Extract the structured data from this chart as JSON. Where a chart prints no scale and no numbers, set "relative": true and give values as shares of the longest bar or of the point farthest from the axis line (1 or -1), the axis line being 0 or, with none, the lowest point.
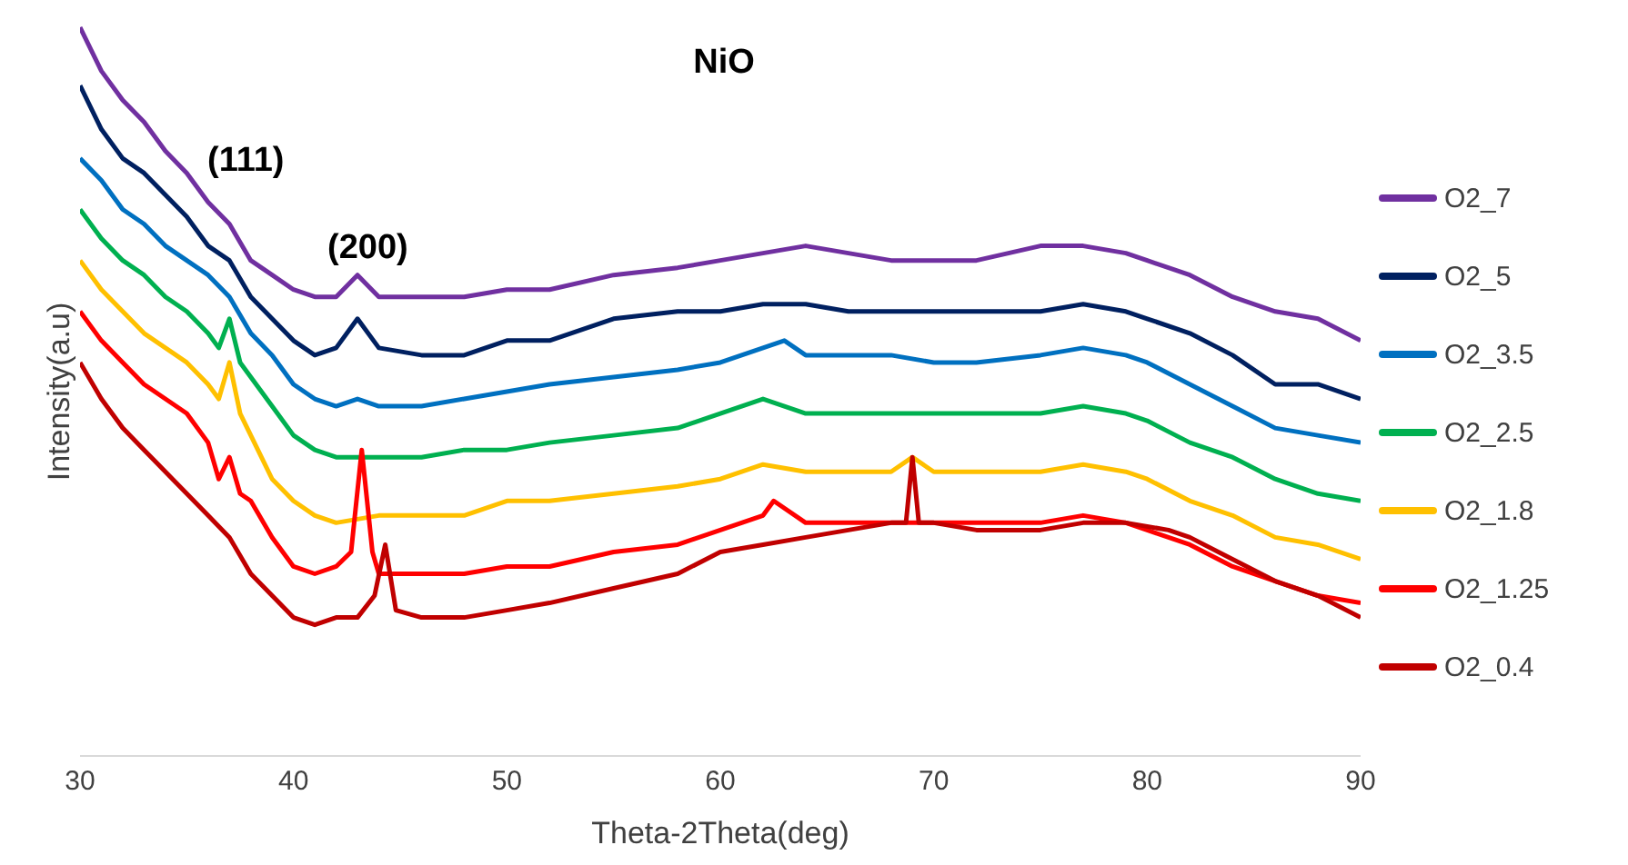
{
  "chart_data": {
    "type": "line",
    "title": "NiO",
    "xlabel": "Theta-2Theta(deg)",
    "ylabel": "Intensity(a.u)",
    "relative": true,
    "xlim": [
      30,
      90
    ],
    "xticks": [
      30,
      40,
      50,
      60,
      70,
      80,
      90
    ],
    "grid": false,
    "legend": "right",
    "marker": "none",
    "line_style": "solid",
    "annotations": [
      "(111)",
      "(200)"
    ],
    "series": [
      {
        "name": "O2_7",
        "color": "#7030a0",
        "x": [
          30,
          31,
          32,
          33,
          34,
          35,
          36,
          37,
          38,
          39,
          40,
          41,
          42,
          43,
          44,
          46,
          48,
          50,
          52,
          55,
          58,
          60,
          62,
          64,
          66,
          68,
          70,
          72,
          75,
          77,
          79,
          80,
          82,
          84,
          86,
          88,
          90
        ],
        "values": [
          1.0,
          0.94,
          0.9,
          0.87,
          0.83,
          0.8,
          0.76,
          0.73,
          0.68,
          0.66,
          0.64,
          0.63,
          0.63,
          0.66,
          0.63,
          0.63,
          0.63,
          0.64,
          0.64,
          0.66,
          0.67,
          0.68,
          0.69,
          0.7,
          0.69,
          0.68,
          0.68,
          0.68,
          0.7,
          0.7,
          0.69,
          0.68,
          0.66,
          0.63,
          0.61,
          0.6,
          0.57
        ]
      },
      {
        "name": "O2_5",
        "color": "#002060",
        "x": [
          30,
          31,
          32,
          33,
          34,
          35,
          36,
          37,
          38,
          39,
          40,
          41,
          42,
          43,
          44,
          46,
          48,
          50,
          52,
          55,
          58,
          60,
          62,
          64,
          66,
          68,
          70,
          72,
          75,
          77,
          79,
          80,
          82,
          84,
          86,
          88,
          90
        ],
        "values": [
          0.92,
          0.86,
          0.82,
          0.8,
          0.77,
          0.74,
          0.7,
          0.68,
          0.63,
          0.6,
          0.57,
          0.55,
          0.56,
          0.6,
          0.56,
          0.55,
          0.55,
          0.57,
          0.57,
          0.6,
          0.61,
          0.61,
          0.62,
          0.62,
          0.61,
          0.61,
          0.61,
          0.61,
          0.61,
          0.62,
          0.61,
          0.6,
          0.58,
          0.55,
          0.51,
          0.51,
          0.49
        ]
      },
      {
        "name": "O2_3.5",
        "color": "#0070c0",
        "x": [
          30,
          31,
          32,
          33,
          34,
          35,
          36,
          37,
          38,
          39,
          40,
          41,
          42,
          43,
          44,
          46,
          48,
          50,
          52,
          55,
          58,
          60,
          62,
          63,
          64,
          66,
          68,
          70,
          72,
          75,
          77,
          79,
          80,
          82,
          84,
          86,
          88,
          90
        ],
        "values": [
          0.82,
          0.79,
          0.75,
          0.73,
          0.7,
          0.68,
          0.66,
          0.63,
          0.58,
          0.55,
          0.51,
          0.49,
          0.48,
          0.49,
          0.48,
          0.48,
          0.49,
          0.5,
          0.51,
          0.52,
          0.53,
          0.54,
          0.56,
          0.57,
          0.55,
          0.55,
          0.55,
          0.54,
          0.54,
          0.55,
          0.56,
          0.55,
          0.54,
          0.51,
          0.48,
          0.45,
          0.44,
          0.43
        ]
      },
      {
        "name": "O2_2.5",
        "color": "#00b050",
        "x": [
          30,
          31,
          32,
          33,
          34,
          35,
          36,
          36.5,
          37,
          37.5,
          38,
          39,
          40,
          41,
          42,
          44,
          46,
          48,
          50,
          52,
          55,
          58,
          60,
          62,
          63,
          64,
          66,
          68,
          70,
          72,
          75,
          77,
          79,
          80,
          82,
          84,
          86,
          88,
          90
        ],
        "values": [
          0.75,
          0.71,
          0.68,
          0.66,
          0.63,
          0.61,
          0.58,
          0.56,
          0.6,
          0.54,
          0.52,
          0.48,
          0.44,
          0.42,
          0.41,
          0.41,
          0.41,
          0.42,
          0.42,
          0.43,
          0.44,
          0.45,
          0.47,
          0.49,
          0.48,
          0.47,
          0.47,
          0.47,
          0.47,
          0.47,
          0.47,
          0.48,
          0.47,
          0.46,
          0.43,
          0.41,
          0.38,
          0.36,
          0.35
        ]
      },
      {
        "name": "O2_1.8",
        "color": "#ffc000",
        "x": [
          30,
          31,
          32,
          33,
          34,
          35,
          36,
          36.5,
          37,
          37.5,
          38,
          39,
          40,
          41,
          42,
          44,
          46,
          48,
          50,
          52,
          55,
          58,
          60,
          62,
          64,
          66,
          68,
          69,
          70,
          72,
          75,
          77,
          79,
          80,
          82,
          84,
          86,
          88,
          90
        ],
        "values": [
          0.68,
          0.64,
          0.61,
          0.58,
          0.56,
          0.54,
          0.51,
          0.49,
          0.54,
          0.47,
          0.44,
          0.38,
          0.35,
          0.33,
          0.32,
          0.33,
          0.33,
          0.33,
          0.35,
          0.35,
          0.36,
          0.37,
          0.38,
          0.4,
          0.39,
          0.39,
          0.39,
          0.41,
          0.39,
          0.39,
          0.39,
          0.4,
          0.39,
          0.38,
          0.35,
          0.33,
          0.3,
          0.29,
          0.27
        ]
      },
      {
        "name": "O2_1.25",
        "color": "#ff0000",
        "x": [
          30,
          31,
          32,
          33,
          34,
          35,
          36,
          36.5,
          37,
          37.5,
          38,
          39,
          40,
          41,
          42,
          42.7,
          43.2,
          43.7,
          44,
          46,
          48,
          50,
          52,
          55,
          58,
          60,
          62,
          62.5,
          64,
          66,
          68,
          70,
          72,
          75,
          77,
          79,
          80,
          82,
          84,
          86,
          88,
          90
        ],
        "values": [
          0.61,
          0.57,
          0.54,
          0.51,
          0.49,
          0.47,
          0.43,
          0.38,
          0.41,
          0.36,
          0.35,
          0.3,
          0.26,
          0.25,
          0.26,
          0.28,
          0.42,
          0.28,
          0.25,
          0.25,
          0.25,
          0.26,
          0.26,
          0.28,
          0.29,
          0.31,
          0.33,
          0.35,
          0.32,
          0.32,
          0.32,
          0.32,
          0.32,
          0.32,
          0.33,
          0.32,
          0.31,
          0.29,
          0.26,
          0.24,
          0.22,
          0.21
        ]
      },
      {
        "name": "O2_0.4",
        "color": "#c00000",
        "x": [
          30,
          31,
          32,
          33,
          34,
          35,
          36,
          37,
          38,
          39,
          40,
          41,
          42,
          43,
          43.8,
          44.3,
          44.8,
          46,
          48,
          50,
          52,
          55,
          58,
          60,
          62,
          64,
          66,
          68,
          68.7,
          69,
          69.3,
          70,
          72,
          75,
          77,
          79,
          81,
          82,
          84,
          86,
          88,
          90
        ],
        "values": [
          0.54,
          0.49,
          0.45,
          0.42,
          0.39,
          0.36,
          0.33,
          0.3,
          0.25,
          0.22,
          0.19,
          0.18,
          0.19,
          0.19,
          0.22,
          0.29,
          0.2,
          0.19,
          0.19,
          0.2,
          0.21,
          0.23,
          0.25,
          0.28,
          0.29,
          0.3,
          0.31,
          0.32,
          0.32,
          0.41,
          0.32,
          0.32,
          0.31,
          0.31,
          0.32,
          0.32,
          0.31,
          0.3,
          0.27,
          0.24,
          0.22,
          0.19
        ]
      }
    ]
  }
}
